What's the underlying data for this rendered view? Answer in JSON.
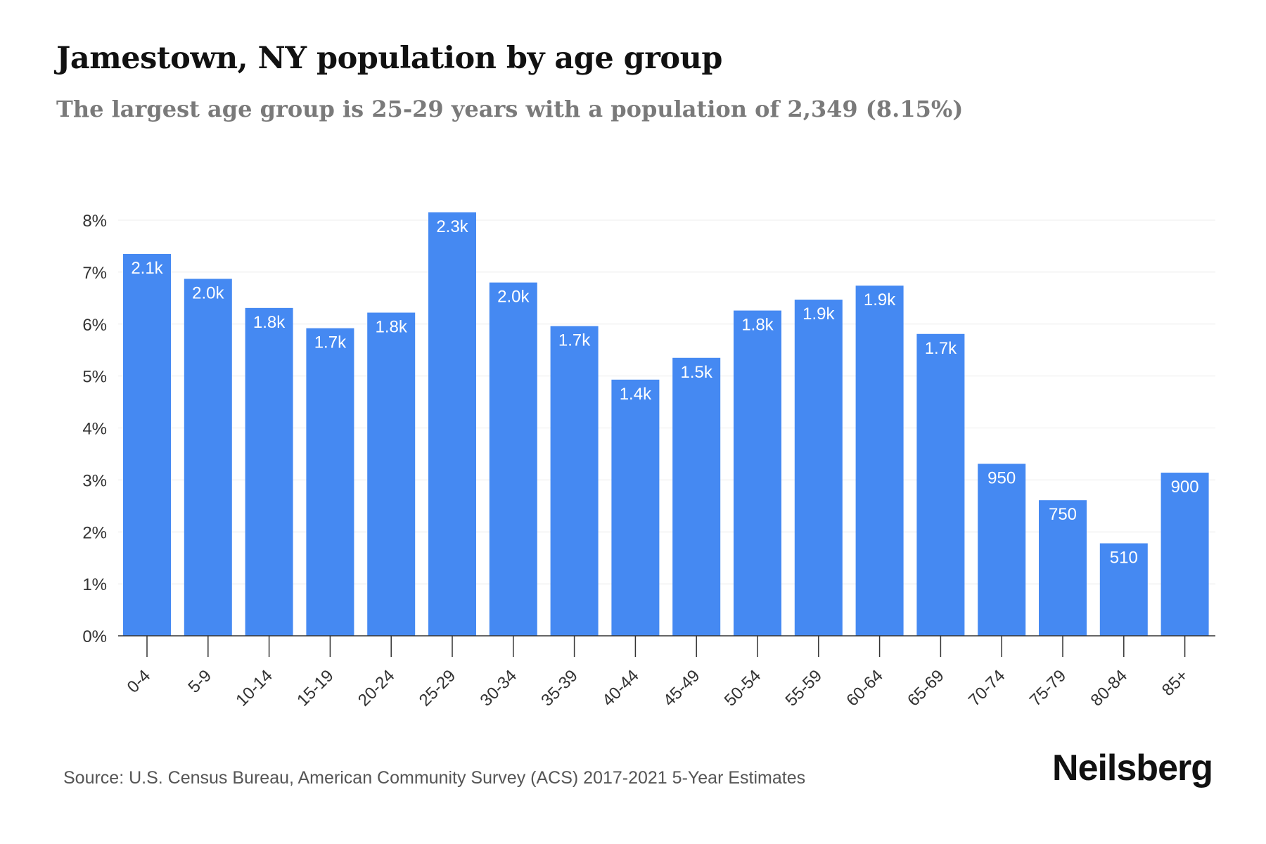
{
  "title": "Jamestown, NY population by age group",
  "subtitle": "The largest age group is 25-29 years with a population of 2,349 (8.15%)",
  "source": "Source: U.S. Census Bureau, American Community Survey (ACS) 2017-2021 5-Year Estimates",
  "brand": "Neilsberg",
  "colors": {
    "bar": "#4589f2",
    "grid": "#ececec",
    "axis": "#333333",
    "tick_text": "#333333",
    "bar_label": "#ffffff"
  },
  "chart_data": {
    "type": "bar",
    "title": "Jamestown, NY population by age group",
    "xlabel": "",
    "ylabel": "",
    "ylim": [
      0,
      8
    ],
    "yticks": [
      0,
      1,
      2,
      3,
      4,
      5,
      6,
      7,
      8
    ],
    "ytick_labels": [
      "0%",
      "1%",
      "2%",
      "3%",
      "4%",
      "5%",
      "6%",
      "7%",
      "8%"
    ],
    "grid": true,
    "categories": [
      "0-4",
      "5-9",
      "10-14",
      "15-19",
      "20-24",
      "25-29",
      "30-34",
      "35-39",
      "40-44",
      "45-49",
      "50-54",
      "55-59",
      "60-64",
      "65-69",
      "70-74",
      "75-79",
      "80-84",
      "85+"
    ],
    "values": [
      7.35,
      6.87,
      6.31,
      5.92,
      6.22,
      8.15,
      6.8,
      5.96,
      4.93,
      5.35,
      6.26,
      6.47,
      6.74,
      5.81,
      3.31,
      2.61,
      1.78,
      3.14
    ],
    "labels": [
      "2.1k",
      "2.0k",
      "1.8k",
      "1.7k",
      "1.8k",
      "2.3k",
      "2.0k",
      "1.7k",
      "1.4k",
      "1.5k",
      "1.8k",
      "1.9k",
      "1.9k",
      "1.7k",
      "950",
      "750",
      "510",
      "900"
    ]
  }
}
